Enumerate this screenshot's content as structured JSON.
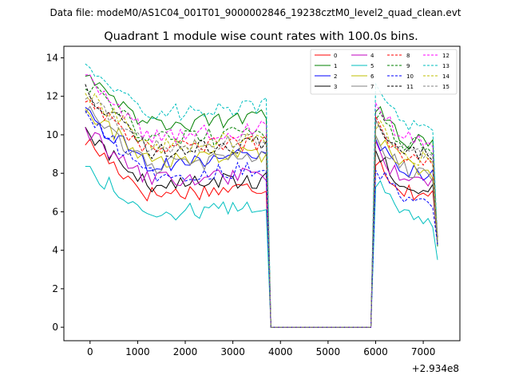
{
  "header": {
    "data_file": "Data file: modeM0/AS1C04_001T01_9000002846_19238cztM0_level2_quad_clean.evt"
  },
  "chart_data": {
    "type": "line",
    "title": "Quadrant 1 module wise count rates with 100.0s bins.",
    "xlabel": "",
    "ylabel": "",
    "x_offset_label": "+2.934e8",
    "xlim": [
      -550,
      7770
    ],
    "ylim": [
      -0.7,
      14.6
    ],
    "xticks": [
      0,
      1000,
      2000,
      3000,
      4000,
      5000,
      6000,
      7000
    ],
    "xtick_labels": [
      "0",
      "1000",
      "2000",
      "3000",
      "4000",
      "5000",
      "6000",
      "7000"
    ],
    "yticks": [
      0,
      2,
      4,
      6,
      8,
      10,
      12,
      14
    ],
    "ytick_labels": [
      "0",
      "2",
      "4",
      "6",
      "8",
      "10",
      "12",
      "14"
    ],
    "grid": false,
    "legend_placement": "top-right",
    "legend_columns": 4,
    "series": [
      {
        "name": "0",
        "color": "#ff0000",
        "style": "solid",
        "start": 9.7,
        "mid": 6.9,
        "post": 7.4
      },
      {
        "name": "1",
        "color": "#008000",
        "style": "solid",
        "start": 13.4,
        "mid": 10.5,
        "post": 10.0
      },
      {
        "name": "2",
        "color": "#0000ff",
        "style": "solid",
        "start": 11.0,
        "mid": 8.5,
        "post": 8.4
      },
      {
        "name": "3",
        "color": "#000000",
        "style": "solid",
        "start": 10.1,
        "mid": 7.3,
        "post": 7.6
      },
      {
        "name": "4",
        "color": "#bf00bf",
        "style": "solid",
        "start": 10.2,
        "mid": 7.6,
        "post": 7.9
      },
      {
        "name": "5",
        "color": "#00bfbf",
        "style": "solid",
        "start": 8.3,
        "mid": 5.9,
        "post": 6.2
      },
      {
        "name": "6",
        "color": "#bfbf00",
        "style": "solid",
        "start": 11.4,
        "mid": 8.6,
        "post": 8.7
      },
      {
        "name": "7",
        "color": "#808080",
        "style": "solid",
        "start": 11.3,
        "mid": 8.4,
        "post": 8.5
      },
      {
        "name": "8",
        "color": "#ff0000",
        "style": "dashed",
        "start": 12.0,
        "mid": 9.2,
        "post": 9.3
      },
      {
        "name": "9",
        "color": "#008000",
        "style": "dashed",
        "start": 12.8,
        "mid": 9.7,
        "post": 9.8
      },
      {
        "name": "10",
        "color": "#0000ff",
        "style": "dashed",
        "start": 10.9,
        "mid": 7.9,
        "post": 7.0
      },
      {
        "name": "11",
        "color": "#000000",
        "style": "dashed",
        "start": 12.4,
        "mid": 9.2,
        "post": 9.4
      },
      {
        "name": "12",
        "color": "#ff00ff",
        "style": "dashed",
        "start": 13.0,
        "mid": 9.9,
        "post": 10.1
      },
      {
        "name": "13",
        "color": "#00bfbf",
        "style": "dashed",
        "start": 13.7,
        "mid": 11.1,
        "post": 10.9
      },
      {
        "name": "14",
        "color": "#bfbf00",
        "style": "dashed",
        "start": 12.3,
        "mid": 9.4,
        "post": 9.2
      },
      {
        "name": "15",
        "color": "#808080",
        "style": "dashed",
        "start": 12.1,
        "mid": 9.3,
        "post": 9.5
      }
    ],
    "segments": {
      "on1_start": -100,
      "on1_end": 3700,
      "gap_start": 3800,
      "gap_end": 5900,
      "on2_start": 6000,
      "on2_end": 7300,
      "bin": 100,
      "gap_value": 0.0,
      "final_values": [
        4.4,
        4.2,
        4.5,
        4.3,
        4.4,
        3.5,
        4.5,
        4.4,
        4.6,
        4.5,
        4.3,
        4.5,
        4.6,
        4.4,
        4.5,
        4.4
      ]
    }
  }
}
